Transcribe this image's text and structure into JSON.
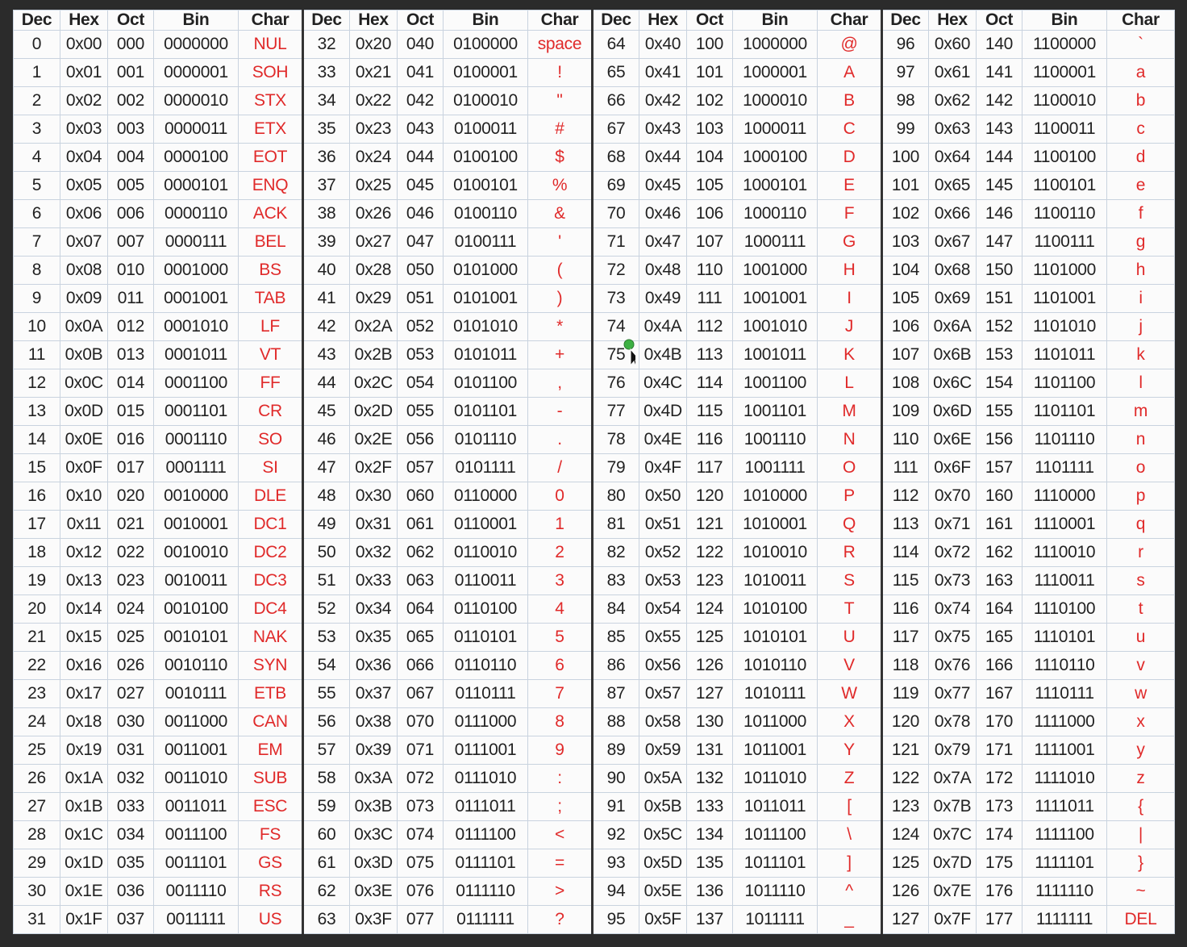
{
  "headers": [
    "Dec",
    "Hex",
    "Oct",
    "Bin",
    "Char"
  ],
  "ctrl": [
    "NUL",
    "SOH",
    "STX",
    "ETX",
    "EOT",
    "ENQ",
    "ACK",
    "BEL",
    "BS",
    "TAB",
    "LF",
    "VT",
    "FF",
    "CR",
    "SO",
    "SI",
    "DLE",
    "DC1",
    "DC2",
    "DC3",
    "DC4",
    "NAK",
    "SYN",
    "ETB",
    "CAN",
    "EM",
    "SUB",
    "ESC",
    "FS",
    "GS",
    "RS",
    "US"
  ],
  "space_label": "space",
  "del_label": "DEL",
  "cursor_icon": "mouse-pointer-icon"
}
